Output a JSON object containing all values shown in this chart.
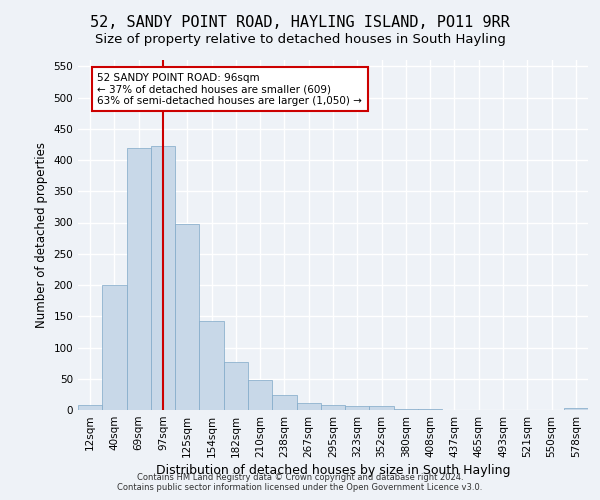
{
  "title": "52, SANDY POINT ROAD, HAYLING ISLAND, PO11 9RR",
  "subtitle": "Size of property relative to detached houses in South Hayling",
  "xlabel": "Distribution of detached houses by size in South Hayling",
  "ylabel": "Number of detached properties",
  "categories": [
    "12sqm",
    "40sqm",
    "69sqm",
    "97sqm",
    "125sqm",
    "154sqm",
    "182sqm",
    "210sqm",
    "238sqm",
    "267sqm",
    "295sqm",
    "323sqm",
    "352sqm",
    "380sqm",
    "408sqm",
    "437sqm",
    "465sqm",
    "493sqm",
    "521sqm",
    "550sqm",
    "578sqm"
  ],
  "values": [
    8,
    200,
    420,
    422,
    298,
    142,
    77,
    48,
    24,
    12,
    8,
    6,
    7,
    2,
    1,
    0,
    0,
    0,
    0,
    0,
    3
  ],
  "bar_color": "#c8d8e8",
  "bar_edge_color": "#7fa8c8",
  "vline_x_index": 3,
  "vline_color": "#cc0000",
  "annotation_text": "52 SANDY POINT ROAD: 96sqm\n← 37% of detached houses are smaller (609)\n63% of semi-detached houses are larger (1,050) →",
  "annotation_box_color": "#ffffff",
  "annotation_box_edge": "#cc0000",
  "ylim": [
    0,
    560
  ],
  "yticks": [
    0,
    50,
    100,
    150,
    200,
    250,
    300,
    350,
    400,
    450,
    500,
    550
  ],
  "footer1": "Contains HM Land Registry data © Crown copyright and database right 2024.",
  "footer2": "Contains public sector information licensed under the Open Government Licence v3.0.",
  "background_color": "#eef2f7",
  "grid_color": "#ffffff",
  "title_fontsize": 11,
  "subtitle_fontsize": 9.5,
  "tick_fontsize": 7.5,
  "ylabel_fontsize": 8.5,
  "xlabel_fontsize": 9,
  "footer_fontsize": 6
}
